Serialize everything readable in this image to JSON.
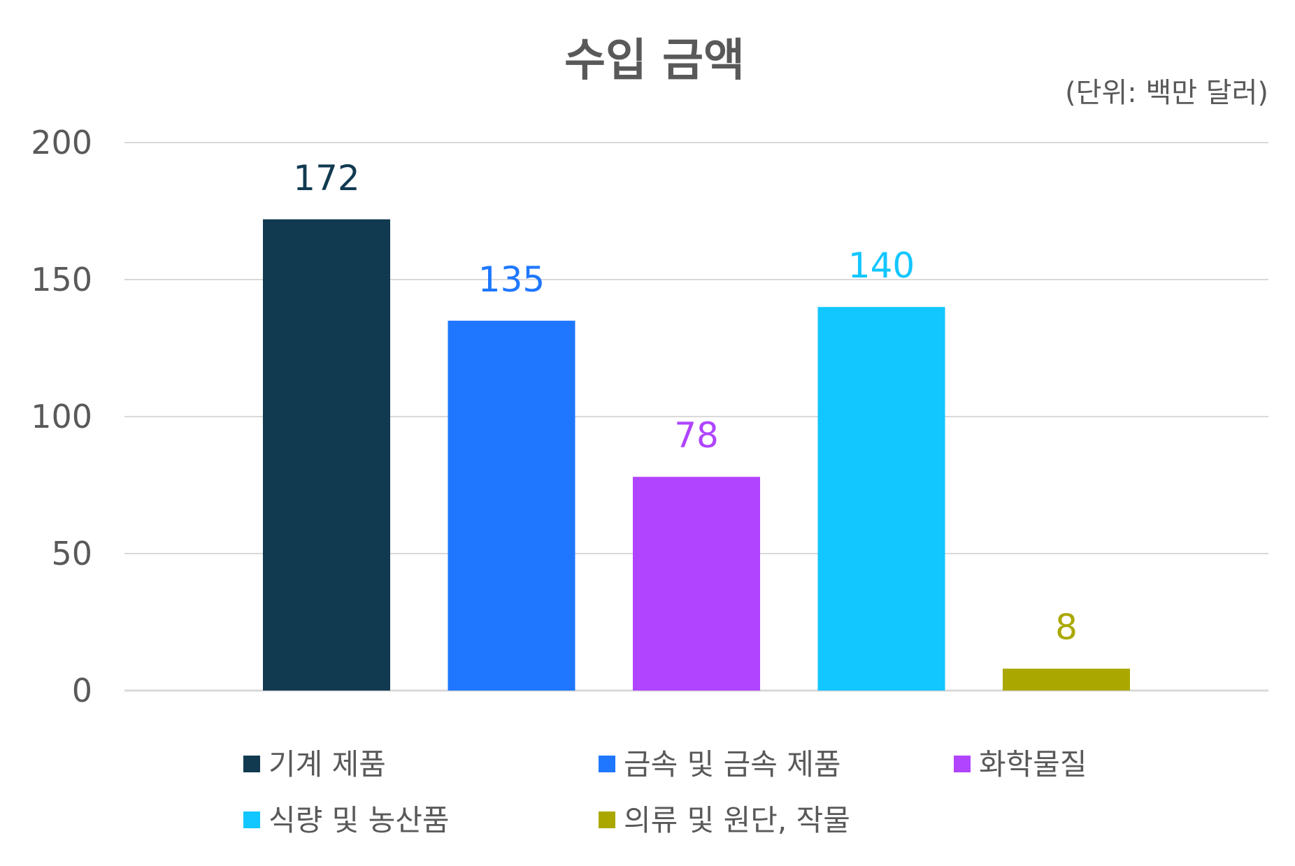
{
  "chart_data": {
    "type": "bar",
    "title": "수입 금액",
    "unit_note": "(단위: 백만 달러)",
    "xlabel": "",
    "ylabel": "",
    "ylim": [
      0,
      200
    ],
    "yticks": [
      "0",
      "50",
      "100",
      "150",
      "200"
    ],
    "grid": true,
    "legend_placement": "bottom",
    "categories": [
      "기계 제품",
      "금속 및 금속 제품",
      "화학물질",
      "식량 및 농산품",
      "의류 및 원단, 작물"
    ],
    "values": [
      172,
      135,
      78,
      140,
      8
    ],
    "data_labels": [
      "172",
      "135",
      "78",
      "140",
      "8"
    ],
    "colors": [
      "#113a51",
      "#1f77ff",
      "#b044ff",
      "#12c6ff",
      "#aaa800"
    ]
  }
}
